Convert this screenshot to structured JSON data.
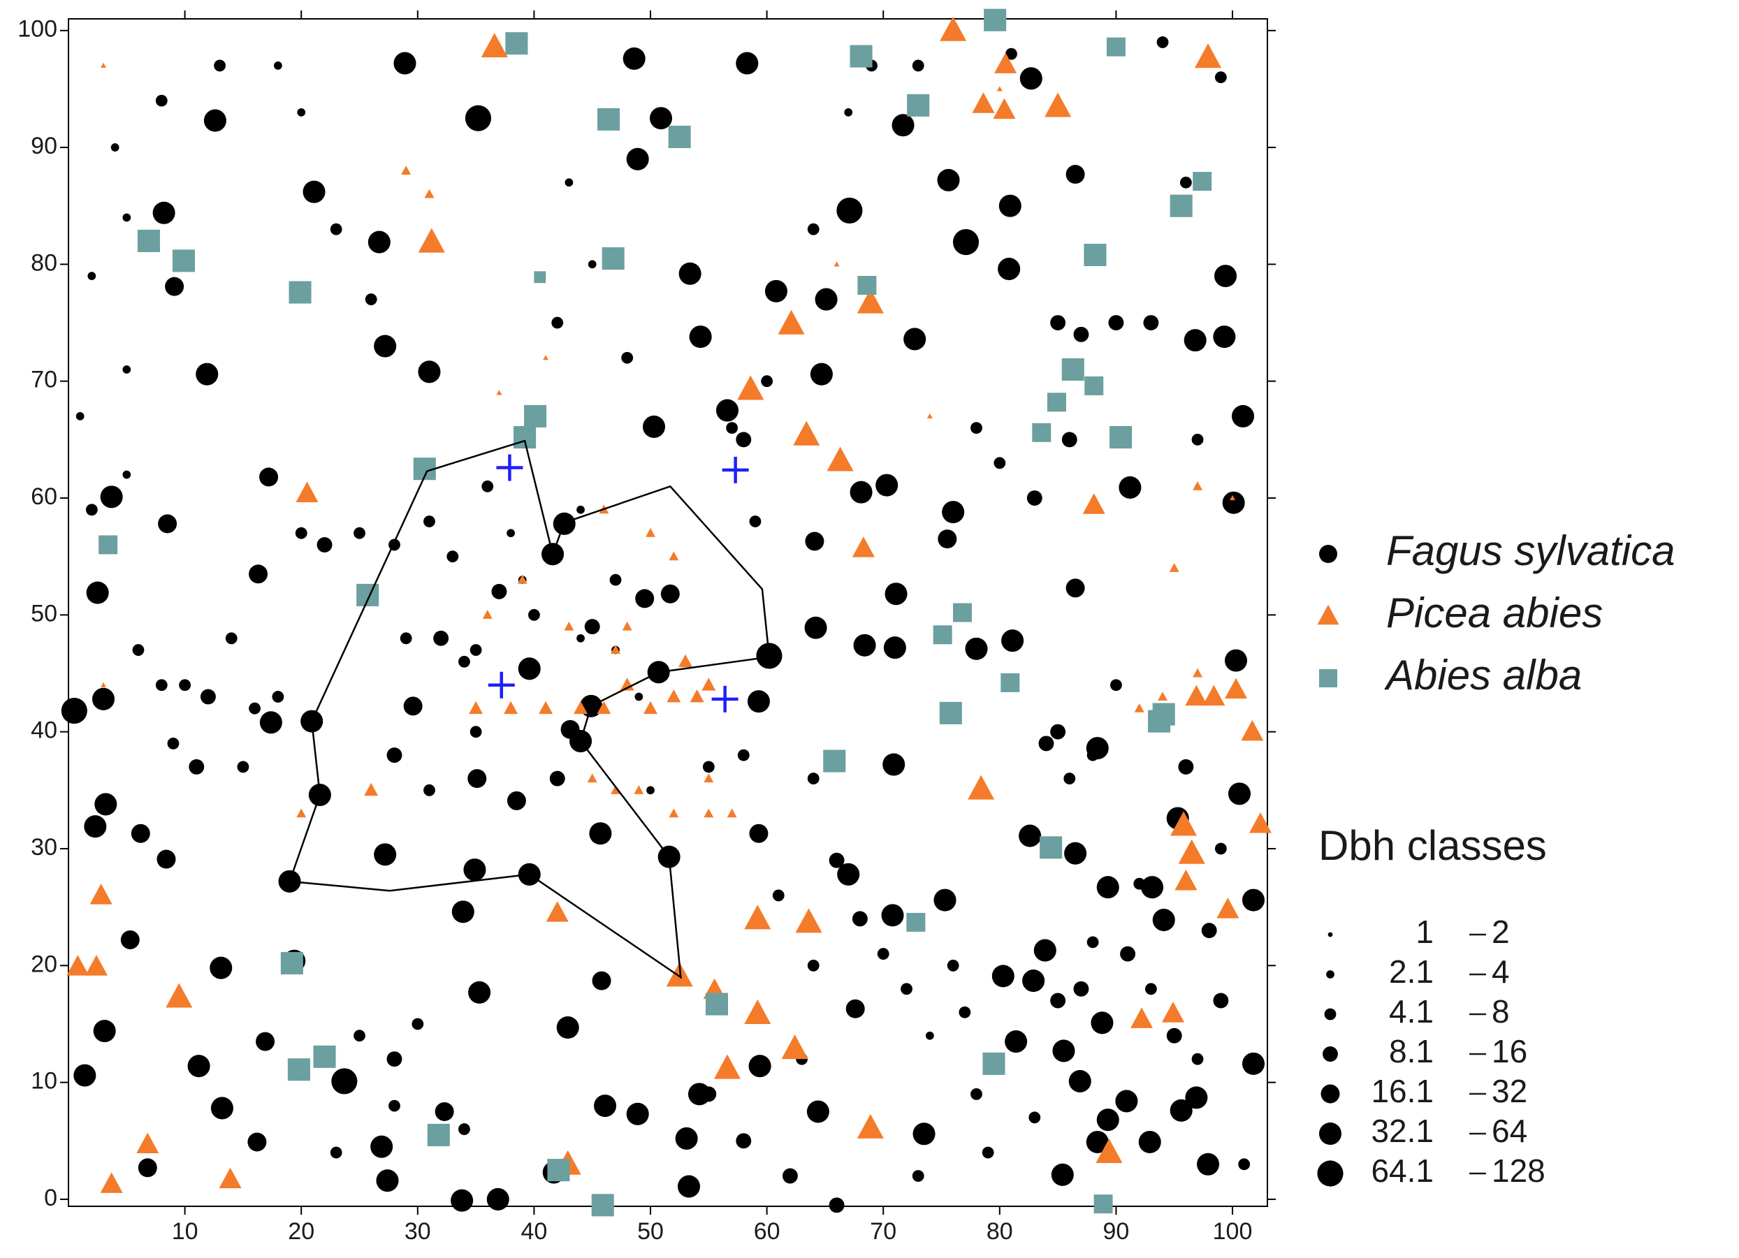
{
  "chart_data": {
    "type": "scatter",
    "xlim": [
      0,
      103
    ],
    "ylim": [
      -0.6,
      101
    ],
    "xticks": [
      10,
      20,
      30,
      40,
      50,
      60,
      70,
      80,
      90,
      100
    ],
    "yticks": [
      0,
      10,
      20,
      30,
      40,
      50,
      60,
      70,
      80,
      90,
      100
    ],
    "legend_title": "Dbh classes",
    "dbh_classes": [
      {
        "low": 1,
        "high": 2
      },
      {
        "low": 2.1,
        "high": 4
      },
      {
        "low": 4.1,
        "high": 8
      },
      {
        "low": 8.1,
        "high": 16
      },
      {
        "low": 16.1,
        "high": 32
      },
      {
        "low": 32.1,
        "high": 64
      },
      {
        "low": 64.1,
        "high": 128
      }
    ],
    "series": [
      {
        "name": "Fagus sylvatica",
        "color": "#000000",
        "marker": "circle",
        "x": [
          35.2,
          67.1,
          77.1,
          28.9,
          48.6,
          58.3,
          50.9,
          48.9,
          12.6,
          21.1,
          8.2,
          26.7,
          53.4,
          60.8,
          65.1,
          54.3,
          27.2,
          31.0,
          11.9,
          64.7,
          50.3,
          56.6,
          68.1,
          3.7,
          2.5,
          42.6,
          41.6,
          39.6,
          50.7,
          60.2,
          44.9,
          44.0,
          51.6,
          39.6,
          19.0,
          17.4,
          20.9,
          21.6,
          0.5,
          2.3,
          3.2,
          13.1,
          3.1,
          11.2,
          1.4,
          13.2,
          23.7,
          26.9,
          35.3,
          42.9,
          46.1,
          48.9,
          54.2,
          53.1,
          59.4,
          64.4,
          71.0,
          68.4,
          71.1,
          75.3,
          73.5,
          82.6,
          83.9,
          91.2,
          100.1,
          100.9,
          99.3,
          95.6,
          101.8,
          90.9,
          88.8,
          81.4,
          85.4,
          101.8,
          88.4,
          94.1,
          92.9,
          100.6,
          95.3,
          89.3,
          86.5,
          93.1,
          85.5,
          89.3,
          97.9,
          96.9,
          82.9,
          86.9,
          80.3,
          80.9,
          75.6,
          72.7,
          71.7,
          80.8,
          99.4,
          96.8,
          86.5,
          82.7,
          41.7,
          53.3,
          36.9,
          33.8,
          9.1,
          17.2,
          16.3,
          8.5,
          3.0,
          6.2,
          8.4,
          5.3,
          27.2,
          33.9,
          38.5,
          43.1,
          59.3,
          59.3,
          67.0,
          70.8,
          67.6,
          70.9,
          64.1,
          64.2,
          70.3,
          76.0,
          78.0,
          75.5,
          86.5,
          100.3,
          81.1,
          88.4,
          19.4,
          16.9,
          16.2,
          6.8,
          27.4,
          34.9,
          45.7,
          29.6,
          35.1,
          32.3,
          45.8,
          49.5,
          51.7,
          37,
          35,
          33,
          40,
          44,
          31,
          28,
          25,
          22,
          20,
          14,
          12,
          10,
          16,
          18,
          8,
          11,
          15,
          28,
          31,
          35,
          42,
          45,
          47,
          47,
          39,
          36,
          32,
          29,
          34,
          38,
          44,
          49,
          68,
          70,
          72,
          76,
          77,
          74,
          78,
          83,
          86,
          83,
          80,
          78,
          85,
          88,
          86,
          84,
          90,
          96,
          99,
          98,
          91,
          87,
          93,
          95,
          99,
          97,
          101,
          85,
          88,
          92,
          5,
          4,
          8,
          13,
          18,
          20,
          23,
          26,
          42,
          45,
          43,
          48,
          57,
          67,
          69,
          73,
          81,
          94,
          99,
          96,
          93,
          85,
          87,
          90,
          97,
          1,
          5,
          2,
          28,
          30,
          25,
          34,
          28,
          23,
          55,
          58,
          62,
          66,
          73,
          79,
          63,
          64,
          61,
          64,
          66,
          59,
          58,
          60,
          64,
          9,
          6,
          2,
          5,
          55,
          58,
          50
        ],
        "y": [
          92.5,
          84.6,
          81.9,
          97.2,
          97.6,
          97.2,
          92.5,
          89.0,
          92.3,
          86.2,
          84.4,
          81.9,
          79.2,
          77.7,
          77.0,
          73.8,
          73.0,
          70.8,
          70.6,
          70.6,
          66.1,
          67.5,
          60.5,
          60.1,
          51.9,
          57.8,
          55.2,
          45.4,
          45.1,
          46.5,
          42.2,
          39.2,
          29.3,
          27.8,
          27.2,
          40.8,
          40.9,
          34.6,
          41.8,
          31.9,
          33.8,
          19.8,
          14.4,
          11.4,
          10.6,
          7.8,
          10.1,
          4.5,
          17.7,
          14.7,
          8.0,
          7.3,
          9.0,
          5.2,
          11.4,
          7.5,
          47.2,
          47.4,
          51.8,
          25.6,
          5.6,
          31.1,
          21.3,
          60.9,
          59.6,
          67.0,
          73.8,
          7.6,
          11.6,
          8.4,
          15.1,
          13.5,
          2.1,
          25.6,
          4.9,
          23.9,
          4.9,
          34.7,
          32.6,
          26.7,
          29.6,
          26.7,
          12.7,
          6.8,
          3.0,
          8.7,
          18.7,
          10.1,
          19.1,
          85.0,
          87.2,
          73.6,
          91.9,
          79.6,
          79.0,
          73.5,
          87.7,
          95.9,
          2.3,
          1.1,
          0,
          -0.1,
          78.1,
          61.8,
          53.5,
          57.8,
          42.8,
          31.3,
          29.1,
          22.2,
          29.5,
          24.6,
          34.1,
          40.2,
          42.6,
          31.3,
          27.8,
          24.3,
          16.3,
          37.2,
          56.3,
          48.9,
          61.1,
          58.8,
          47.1,
          56.5,
          52.3,
          46.1,
          47.8,
          38.6,
          20.4,
          13.5,
          4.9,
          2.7,
          1.6,
          28.2,
          31.3,
          42.2,
          36.0,
          7.5,
          18.7,
          51.4,
          51.8,
          52,
          47,
          55,
          50,
          48,
          58,
          56,
          57,
          56,
          57,
          48,
          43,
          44,
          42,
          43,
          44,
          37,
          37,
          38,
          35,
          40,
          36,
          49,
          53,
          47,
          53,
          61,
          48,
          48,
          46,
          57,
          59,
          43,
          24,
          21,
          18,
          20,
          16,
          14,
          9,
          7,
          65,
          60,
          63,
          66,
          40,
          38,
          36,
          39,
          44,
          37,
          30,
          23,
          21,
          18,
          18,
          14,
          17,
          12,
          3,
          17,
          22,
          27,
          84,
          90,
          94,
          97,
          97,
          93,
          83,
          77,
          75,
          80,
          87,
          72,
          66,
          93,
          97,
          97,
          98,
          99,
          96,
          87,
          75,
          75,
          74,
          75,
          65,
          67,
          71,
          79,
          12,
          15,
          14,
          6,
          8,
          4,
          9,
          5,
          2,
          -0.5,
          2,
          4,
          12,
          20,
          26,
          36,
          29,
          58,
          65,
          70,
          83,
          39,
          47,
          59,
          62,
          37,
          38,
          35
        ],
        "dbh": [
          100,
          100,
          80,
          60,
          60,
          60,
          60,
          60,
          60,
          60,
          60,
          60,
          60,
          60,
          40,
          60,
          60,
          60,
          60,
          50,
          60,
          60,
          60,
          60,
          60,
          60,
          60,
          60,
          50,
          100,
          60,
          60,
          60,
          60,
          50,
          60,
          60,
          60,
          100,
          60,
          60,
          60,
          60,
          60,
          60,
          60,
          70,
          60,
          60,
          60,
          60,
          50,
          50,
          50,
          60,
          60,
          50,
          60,
          50,
          60,
          50,
          50,
          60,
          40,
          60,
          60,
          40,
          50,
          60,
          50,
          50,
          40,
          40,
          40,
          50,
          50,
          50,
          40,
          50,
          50,
          40,
          40,
          50,
          40,
          40,
          40,
          40,
          40,
          40,
          40,
          40,
          40,
          50,
          40,
          40,
          40,
          30,
          40,
          40,
          40,
          40,
          40,
          30,
          30,
          30,
          30,
          40,
          30,
          30,
          30,
          40,
          40,
          30,
          30,
          40,
          30,
          40,
          40,
          30,
          40,
          30,
          40,
          40,
          40,
          40,
          30,
          30,
          40,
          40,
          40,
          40,
          30,
          30,
          30,
          40,
          40,
          40,
          30,
          30,
          30,
          30,
          30,
          30,
          12,
          6,
          6,
          6,
          3,
          6,
          6,
          6,
          12,
          6,
          6,
          12,
          6,
          6,
          6,
          6,
          12,
          6,
          12,
          6,
          6,
          12,
          12,
          6,
          3,
          3,
          6,
          12,
          6,
          6,
          3,
          3,
          3,
          12,
          6,
          6,
          6,
          6,
          3,
          6,
          6,
          12,
          12,
          6,
          6,
          12,
          6,
          6,
          12,
          6,
          12,
          6,
          12,
          12,
          12,
          6,
          12,
          12,
          6,
          6,
          12,
          6,
          6,
          3,
          3,
          6,
          6,
          3,
          3,
          6,
          6,
          6,
          3,
          3,
          6,
          6,
          3,
          6,
          6,
          6,
          6,
          6,
          6,
          12,
          12,
          12,
          12,
          6,
          3,
          3,
          3,
          12,
          6,
          6,
          6,
          6,
          6,
          12,
          12,
          12,
          12,
          6,
          6,
          6,
          6,
          6,
          6,
          12,
          6,
          12,
          6,
          6,
          6,
          6,
          6,
          3,
          6,
          6,
          3
        ]
      },
      {
        "name": "Picea abies",
        "color": "#f47b2a",
        "marker": "triangle",
        "x": [
          36.6,
          76.0,
          97.9,
          85.0,
          78.6,
          80.4,
          80.5,
          31.2,
          68.9,
          62.1,
          58.6,
          63.4,
          66.3,
          68.3,
          20.5,
          88.1,
          78.4,
          95.8,
          96.5,
          96.0,
          99.6,
          101.7,
          102.4,
          2.8,
          0.8,
          2.4,
          9.5,
          42.0,
          52.5,
          59.2,
          63.6,
          55.5,
          59.2,
          62.4,
          56.6,
          68.9,
          89.4,
          6.8,
          3.7,
          13.9,
          42.9,
          92.2,
          94.9,
          96.9,
          98.4,
          100.3,
          44,
          46,
          48,
          50,
          52,
          54,
          55,
          53,
          45,
          47,
          49,
          52,
          55,
          57,
          55,
          41,
          38,
          35,
          36,
          39,
          47,
          48,
          43,
          26,
          20,
          46,
          50,
          52,
          92,
          94,
          97,
          3,
          37,
          29,
          31,
          3,
          41,
          66,
          74,
          80,
          100,
          97,
          95
        ],
        "y": [
          98.6,
          100,
          97.7,
          93.5,
          93.7,
          93.2,
          97.1,
          81.9,
          76.7,
          74.9,
          69.3,
          65.4,
          63.2,
          55.7,
          60.4,
          59.4,
          35.1,
          32.0,
          29.6,
          27.2,
          24.8,
          40.0,
          32.1,
          26.0,
          19.9,
          19.9,
          17.3,
          24.5,
          19.1,
          24.0,
          23.7,
          17.9,
          15.9,
          12.9,
          11.2,
          6.1,
          4.0,
          4.7,
          1.3,
          1.7,
          3.0,
          15.4,
          15.9,
          43.0,
          43.0,
          43.6,
          42,
          42,
          44,
          42,
          43,
          43,
          44,
          46,
          36,
          35,
          35,
          33,
          33,
          33,
          36,
          42,
          42,
          42,
          50,
          53,
          47,
          49,
          49,
          35,
          33,
          59,
          57,
          55,
          42,
          43,
          45,
          44,
          69,
          88,
          86,
          97,
          72,
          80,
          67,
          95,
          60,
          61,
          54
        ],
        "dbh": [
          50,
          50,
          50,
          40,
          30,
          30,
          30,
          40,
          50,
          50,
          40,
          50,
          50,
          30,
          30,
          30,
          50,
          40,
          40,
          30,
          30,
          30,
          30,
          30,
          30,
          30,
          50,
          30,
          50,
          50,
          40,
          30,
          50,
          50,
          50,
          40,
          50,
          30,
          30,
          30,
          40,
          30,
          30,
          30,
          30,
          30,
          6,
          6,
          6,
          6,
          6,
          6,
          6,
          6,
          3,
          3,
          3,
          3,
          3,
          3,
          3,
          6,
          6,
          6,
          3,
          3,
          3,
          3,
          3,
          6,
          3,
          3,
          3,
          3,
          3,
          3,
          3,
          1.5,
          1.5,
          3,
          3,
          1.5,
          1.5,
          1.5,
          1.5,
          1.5,
          1.5,
          3,
          3
        ]
      },
      {
        "name": "Abies alba",
        "color": "#6c9f9f",
        "marker": "square",
        "x": [
          79.6,
          38.5,
          68.1,
          46.4,
          73.0,
          52.5,
          90.0,
          97.4,
          95.6,
          88.2,
          6.9,
          9.9,
          19.9,
          46.8,
          68.6,
          40.5,
          86.3,
          84.9,
          88.1,
          83.6,
          90.4,
          40.1,
          39.2,
          30.6,
          3.4,
          25.7,
          76.8,
          75.1,
          80.9,
          75.8,
          94.1,
          93.7,
          65.8,
          84.4,
          72.8,
          19.2,
          22.0,
          19.8,
          79.5,
          31.8,
          42.1,
          45.9,
          88.9,
          55.7
        ],
        "y": [
          100.9,
          98.9,
          97.8,
          92.4,
          93.6,
          90.9,
          98.6,
          87.1,
          85.0,
          80.8,
          82.0,
          80.3,
          77.6,
          80.5,
          78.2,
          78.9,
          71.0,
          68.2,
          69.6,
          65.6,
          65.2,
          67.0,
          65.2,
          62.5,
          56.0,
          51.7,
          50.2,
          48.3,
          44.2,
          41.6,
          41.5,
          40.9,
          37.5,
          30.1,
          23.7,
          20.2,
          12.2,
          11.1,
          11.6,
          5.5,
          2.5,
          -0.5,
          -0.4,
          16.7
        ],
        "dbh": [
          60,
          60,
          60,
          60,
          60,
          40,
          30,
          30,
          40,
          60,
          60,
          60,
          60,
          40,
          30,
          6,
          50,
          30,
          30,
          30,
          60,
          50,
          50,
          50,
          30,
          50,
          30,
          30,
          30,
          60,
          50,
          40,
          50,
          50,
          20,
          60,
          40,
          60,
          60,
          50,
          40,
          50,
          30,
          40
        ]
      }
    ],
    "polygon": {
      "color": "#000000",
      "x": [
        30.8,
        39.2,
        41.6,
        42.6,
        51.7,
        59.6,
        60.2,
        50.7,
        44.9,
        44.0,
        51.6,
        52.6,
        39.6,
        27.6,
        19.0,
        21.6,
        20.9
      ],
      "y": [
        62.3,
        64.9,
        55.2,
        57.9,
        61.0,
        52.2,
        46.4,
        45.1,
        42.2,
        39.2,
        29.3,
        19.0,
        27.8,
        26.4,
        27.2,
        34.6,
        40.9
      ]
    },
    "crosses": {
      "color": "#1f1fff",
      "x": [
        37.9,
        57.3,
        37.2,
        56.4
      ],
      "y": [
        62.6,
        62.4,
        44.0,
        42.8
      ]
    }
  }
}
